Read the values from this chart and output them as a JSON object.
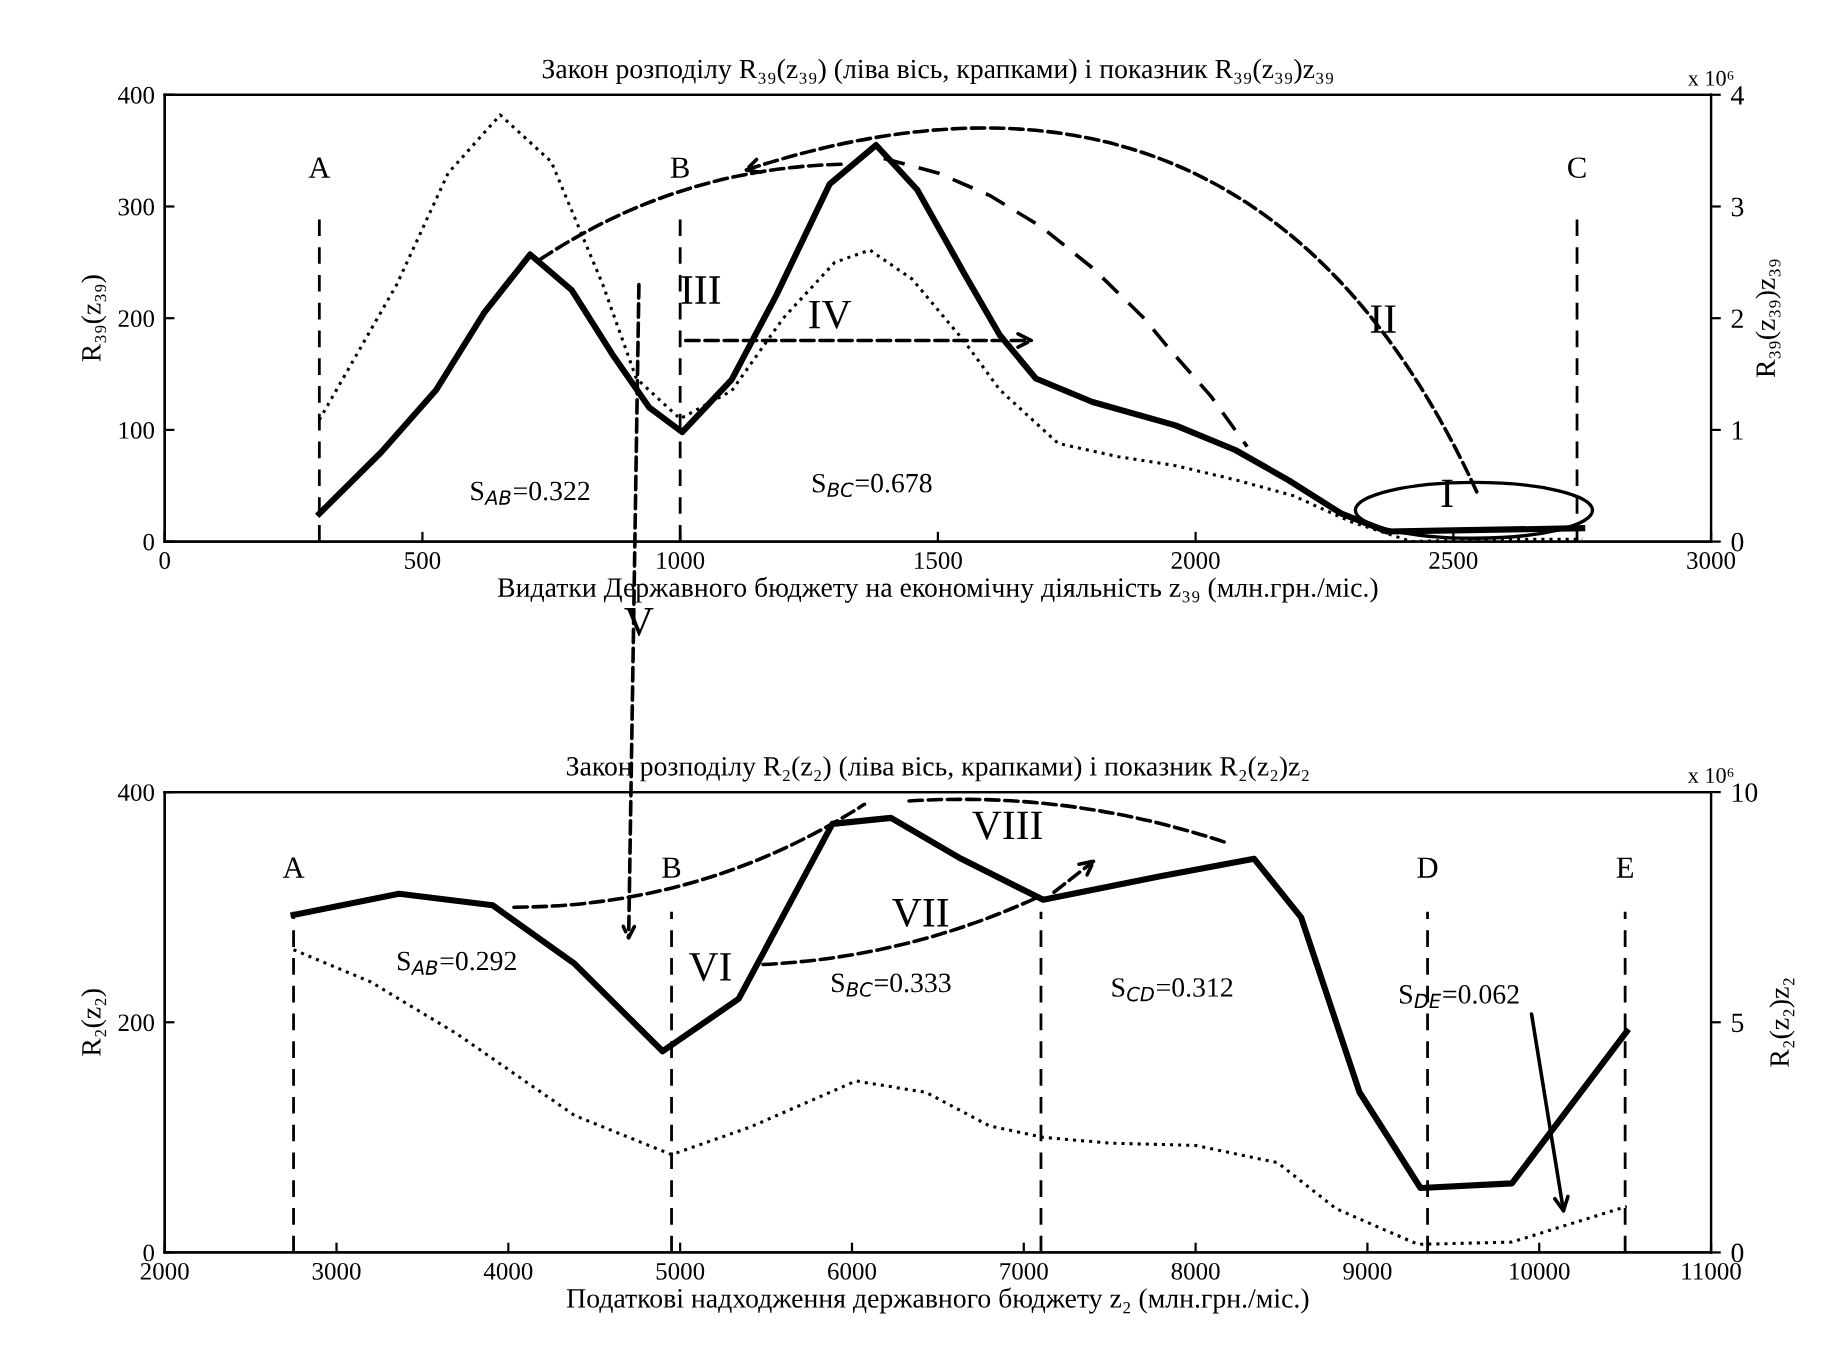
{
  "chart_data": [
    {
      "type": "line",
      "title": "Закон розподілу R₃₉(z₃₉) (ліва вісь, крапками) і показник R₃₉(z₃₉)z₃₉",
      "xlabel": "Видатки Державного бюджету на економічну діяльність z₃₉ (млн.грн./міс.)",
      "ylabel": "R₃₉(z₃₉)",
      "y2label": "R₃₉(z₃₉)z₃₉",
      "series": [
        {
          "color": "#000000",
          "line_style": "dotted",
          "x": [
            300,
            450,
            550,
            651,
            750,
            850,
            915,
            1000,
            1100,
            1200,
            1300,
            1368,
            1450,
            1550,
            1620,
            1733,
            1850,
            1961,
            2080,
            2190,
            2300,
            2419,
            2550,
            2750
          ],
          "values": [
            109,
            230,
            330,
            382,
            340,
            230,
            146,
            110,
            135,
            200,
            250,
            261,
            235,
            180,
            136,
            88,
            76,
            68,
            55,
            41,
            18,
            0,
            2,
            2
          ]
        },
        {
          "color": "#000000",
          "line_style": "dashed",
          "x": [
            1395,
            1500,
            1600,
            1700,
            1800,
            1900,
            1950,
            2030,
            2100
          ],
          "values": [
            343,
            330,
            310,
            282,
            245,
            200,
            172,
            130,
            85
          ]
        },
        {
          "color": "#000000",
          "line_style": "solid",
          "axis": "y2",
          "x": [
            300,
            420,
            527,
            620,
            709,
            790,
            868,
            940,
            1004,
            1100,
            1186,
            1290,
            1380,
            1460,
            1550,
            1620,
            1690,
            1800,
            1961,
            2077,
            2180,
            2283,
            2372,
            2500,
            2750
          ],
          "values": [
            0.25,
            0.8,
            1.36,
            2.05,
            2.57,
            2.25,
            1.68,
            1.2,
            0.98,
            1.45,
            2.2,
            3.2,
            3.55,
            3.15,
            2.41,
            1.85,
            1.46,
            1.25,
            1.04,
            0.82,
            0.55,
            0.25,
            0.09,
            0.1,
            0.12
          ]
        }
      ],
      "xlim": [
        0,
        3000
      ],
      "xticks": [
        0,
        500,
        1000,
        1500,
        2000,
        2500,
        3000
      ],
      "ylim": [
        0,
        400
      ],
      "yticks": [
        0,
        100,
        200,
        300,
        400
      ],
      "y2lim": [
        0,
        4
      ],
      "y2ticks": [
        0,
        1,
        2,
        3,
        4
      ],
      "ref_lines": [
        {
          "axis": "x",
          "value": 300,
          "label": "A",
          "line_style": "dashed",
          "color": "#000000"
        },
        {
          "axis": "x",
          "value": 1000,
          "label": "B",
          "line_style": "dashed",
          "color": "#000000"
        },
        {
          "axis": "x",
          "value": 2740,
          "label": "C",
          "line_style": "dashed",
          "color": "#000000"
        }
      ],
      "annotations": [
        "x 10⁶",
        "S$_{AB}$=0.322",
        "S$_{BC}$=0.678",
        "III",
        "IV",
        "II",
        "I",
        "V"
      ],
      "grid": false,
      "legend": false,
      "marker": "none"
    },
    {
      "type": "line",
      "title": "Закон розподілу R₂(z₂) (ліва вісь, крапками) і показник R₂(z₂)z₂",
      "xlabel": "Податкові надходження державного бюджету z₂ (млн.грн./міс.)",
      "ylabel": "R₂(z₂)",
      "y2label": "R₂(z₂)z₂",
      "series": [
        {
          "color": "#000000",
          "line_style": "dotted",
          "x": [
            2750,
            3200,
            3700,
            4386,
            4950,
            5409,
            6023,
            6432,
            6800,
            7113,
            7500,
            8000,
            8477,
            8818,
            9295,
            9841,
            10509
          ],
          "values": [
            263,
            235,
            190,
            119,
            85,
            109,
            149,
            139,
            110,
            100,
            95,
            93,
            78,
            38,
            7,
            9,
            40
          ]
        },
        {
          "color": "#000000",
          "line_style": "solid",
          "axis": "y2",
          "x": [
            2750,
            3364,
            3909,
            4386,
            4898,
            5341,
            5886,
            6227,
            6636,
            7113,
            7795,
            8341,
            8614,
            8954,
            9309,
            9841,
            10509
          ],
          "values": [
            7.33,
            7.79,
            7.54,
            6.27,
            4.37,
            5.51,
            9.31,
            9.44,
            8.55,
            7.66,
            8.17,
            8.55,
            7.28,
            3.48,
            1.4,
            1.5,
            4.8
          ]
        }
      ],
      "xlim": [
        2000,
        11000
      ],
      "xticks": [
        2000,
        3000,
        4000,
        5000,
        6000,
        7000,
        8000,
        9000,
        10000,
        11000
      ],
      "ylim": [
        0,
        400
      ],
      "yticks": [
        0,
        200,
        400
      ],
      "y2lim": [
        0,
        10
      ],
      "y2ticks": [
        0,
        5,
        10
      ],
      "ref_lines": [
        {
          "axis": "x",
          "value": 2750,
          "label": "A",
          "line_style": "dashed",
          "color": "#000000"
        },
        {
          "axis": "x",
          "value": 4950,
          "label": "B",
          "line_style": "dashed",
          "color": "#000000"
        },
        {
          "axis": "x",
          "value": 7100,
          "label": null,
          "line_style": "dashed",
          "color": "#000000"
        },
        {
          "axis": "x",
          "value": 9350,
          "label": "D",
          "line_style": "dashed",
          "color": "#000000"
        },
        {
          "axis": "x",
          "value": 10500,
          "label": "E",
          "line_style": "dashed",
          "color": "#000000"
        }
      ],
      "annotations": [
        "x 10⁶",
        "S$_{AB}$=0.292",
        {
          "text": "VI",
          "x": 4950,
          "y": 245
        },
        "S$_{BC}$=0.333",
        "VII",
        {
          "text": "VIII",
          "x": 7100,
          "y": 310
        },
        "S$_{CD}$=0.312",
        "S$_{DE}$=0.062"
      ],
      "grid": false,
      "legend": false,
      "marker": "none"
    }
  ]
}
